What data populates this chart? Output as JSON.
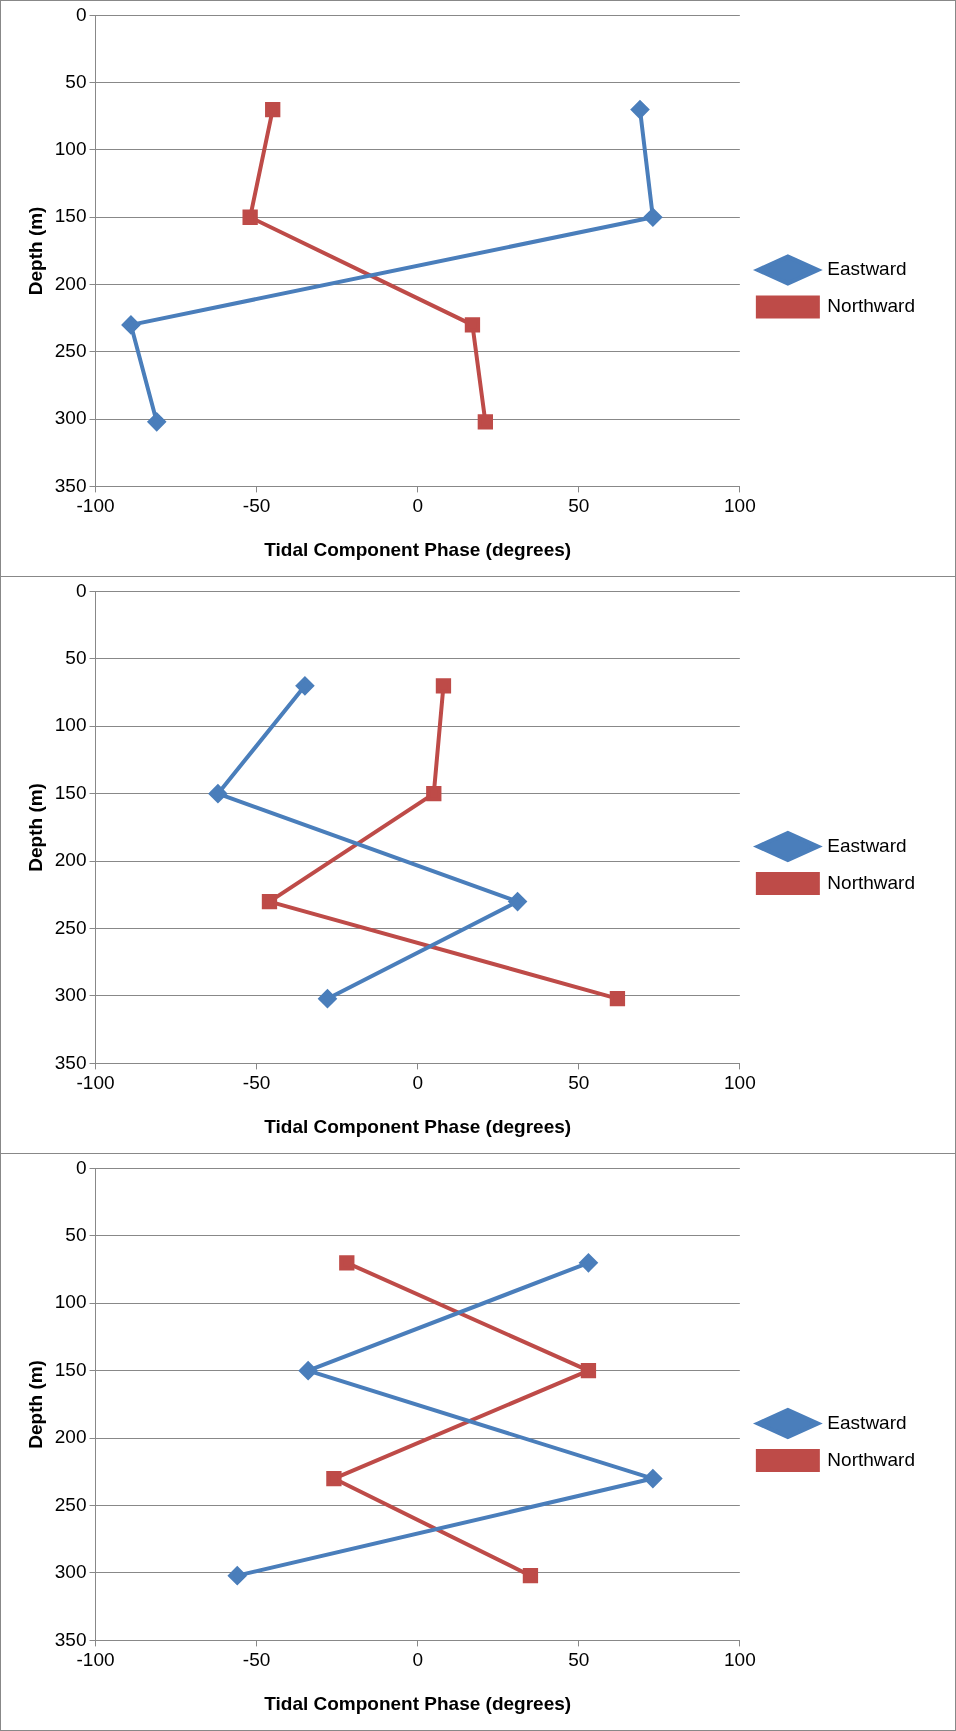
{
  "chart_data": [
    {
      "type": "line",
      "orientation": "horizontal",
      "xlabel": "Tidal Component Phase (degrees)",
      "ylabel": "Depth (m)",
      "xlim": [
        -100,
        100
      ],
      "xticks": [
        -100,
        -50,
        0,
        50,
        100
      ],
      "ylim": [
        350,
        0
      ],
      "yticks": [
        0,
        50,
        100,
        150,
        200,
        250,
        300,
        350
      ],
      "grid": "y",
      "legend": "right",
      "series": [
        {
          "name": "Eastward",
          "color": "#4a7ebb",
          "marker": "diamond",
          "x": [
            70,
            150,
            230,
            302
          ],
          "values": [
            69,
            73,
            -89,
            -81
          ]
        },
        {
          "name": "Northward",
          "color": "#be4b48",
          "marker": "square",
          "x": [
            70,
            150,
            230,
            302
          ],
          "values": [
            -45,
            -52,
            17,
            21
          ]
        }
      ]
    },
    {
      "type": "line",
      "orientation": "horizontal",
      "xlabel": "Tidal Component Phase (degrees)",
      "ylabel": "Depth (m)",
      "xlim": [
        -100,
        100
      ],
      "xticks": [
        -100,
        -50,
        0,
        50,
        100
      ],
      "ylim": [
        350,
        0
      ],
      "yticks": [
        0,
        50,
        100,
        150,
        200,
        250,
        300,
        350
      ],
      "grid": "y",
      "legend": "right",
      "series": [
        {
          "name": "Eastward",
          "color": "#4a7ebb",
          "marker": "diamond",
          "x": [
            70,
            150,
            230,
            302
          ],
          "values": [
            -35,
            -62,
            31,
            -28
          ]
        },
        {
          "name": "Northward",
          "color": "#be4b48",
          "marker": "square",
          "x": [
            70,
            150,
            230,
            302
          ],
          "values": [
            8,
            5,
            -46,
            62
          ]
        }
      ]
    },
    {
      "type": "line",
      "orientation": "horizontal",
      "xlabel": "Tidal Component Phase (degrees)",
      "ylabel": "Depth (m)",
      "xlim": [
        -100,
        100
      ],
      "xticks": [
        -100,
        -50,
        0,
        50,
        100
      ],
      "ylim": [
        350,
        0
      ],
      "yticks": [
        0,
        50,
        100,
        150,
        200,
        250,
        300,
        350
      ],
      "grid": "y",
      "legend": "right",
      "series": [
        {
          "name": "Eastward",
          "color": "#4a7ebb",
          "marker": "diamond",
          "x": [
            70,
            150,
            230,
            302
          ],
          "values": [
            53,
            -34,
            73,
            -56
          ]
        },
        {
          "name": "Northward",
          "color": "#be4b48",
          "marker": "square",
          "x": [
            70,
            150,
            230,
            302
          ],
          "values": [
            -22,
            53,
            -26,
            35
          ]
        }
      ]
    }
  ]
}
